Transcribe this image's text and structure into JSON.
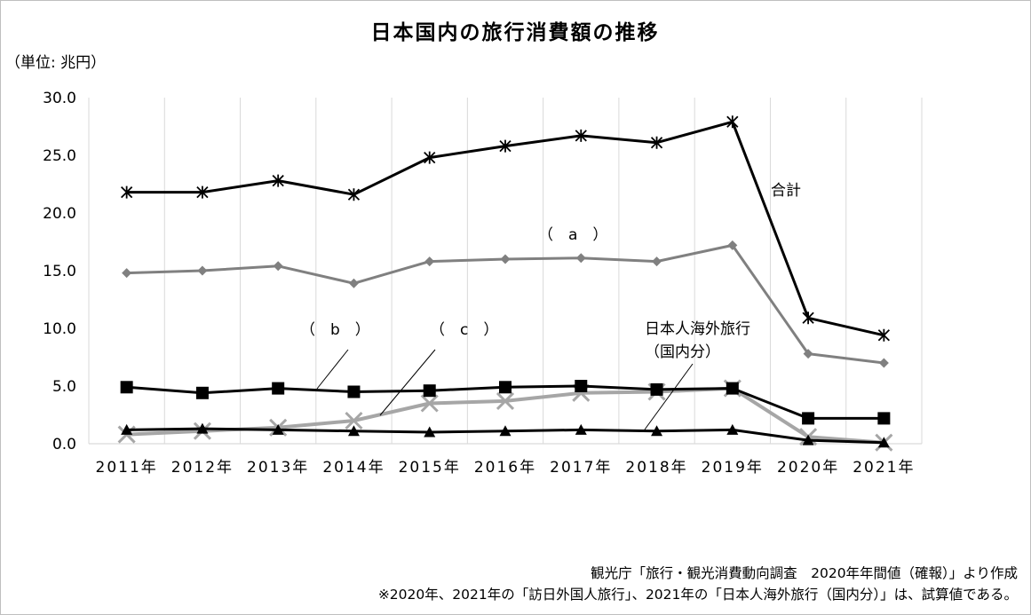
{
  "chart_data": {
    "type": "line",
    "title": "日本国内の旅行消費額の推移",
    "unit_label": "（単位: 兆円）",
    "categories": [
      "2011年",
      "2012年",
      "2013年",
      "2014年",
      "2015年",
      "2016年",
      "2017年",
      "2018年",
      "2019年",
      "2020年",
      "2021年"
    ],
    "y_ticks": [
      "0.0",
      "5.0",
      "10.0",
      "15.0",
      "20.0",
      "25.0",
      "30.0"
    ],
    "ylim": [
      0,
      30
    ],
    "grid": "vertical",
    "series": [
      {
        "id": "total",
        "name": "合計",
        "color": "#000000",
        "marker": "asterisk",
        "values": [
          21.8,
          21.8,
          22.8,
          21.6,
          24.8,
          25.8,
          26.7,
          26.1,
          27.9,
          10.9,
          9.4
        ]
      },
      {
        "id": "a",
        "name": "（　a　）",
        "color": "#808080",
        "marker": "diamond",
        "values": [
          14.8,
          15.0,
          15.4,
          13.9,
          15.8,
          16.0,
          16.1,
          15.8,
          17.2,
          7.8,
          7.0
        ]
      },
      {
        "id": "b",
        "name": "（　b　）",
        "color": "#000000",
        "marker": "square",
        "values": [
          4.9,
          4.4,
          4.8,
          4.5,
          4.6,
          4.9,
          5.0,
          4.7,
          4.8,
          2.2,
          2.2
        ]
      },
      {
        "id": "c",
        "name": "（　c　）",
        "color": "#a6a6a6",
        "marker": "x",
        "values": [
          0.8,
          1.1,
          1.4,
          2.0,
          3.5,
          3.7,
          4.4,
          4.5,
          4.8,
          0.6,
          0.1
        ]
      },
      {
        "id": "overseas",
        "name": "日本人海外旅行",
        "name_line2": "（国内分）",
        "color": "#000000",
        "marker": "triangle",
        "values": [
          1.2,
          1.3,
          1.2,
          1.1,
          1.0,
          1.1,
          1.2,
          1.1,
          1.2,
          0.3,
          0.1
        ]
      }
    ],
    "source_note": "観光庁「旅行・観光消費動向調査　2020年年間値（確報）」より作成",
    "footnote": "※2020年、2021年の「訪日外国人旅行」、2021年の「日本人海外旅行（国内分）」は、試算値である。"
  }
}
